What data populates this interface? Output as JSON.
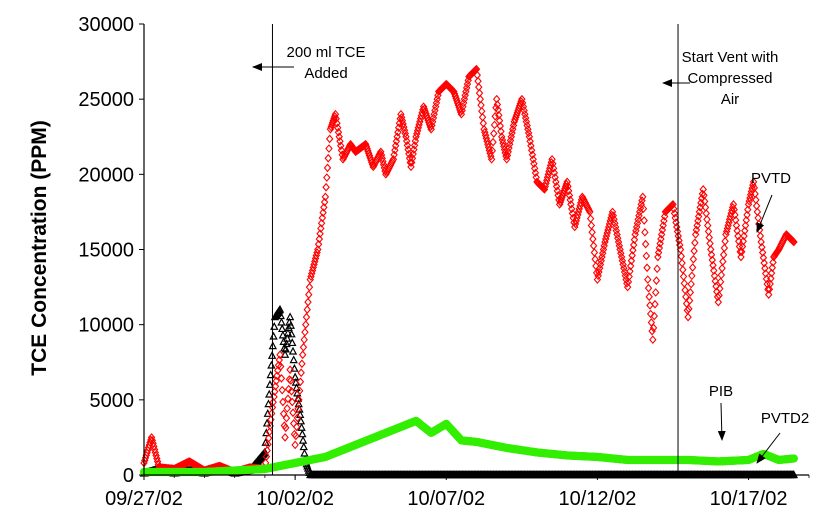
{
  "chart_data": {
    "type": "scatter",
    "title": "",
    "xlabel": "",
    "ylabel": "TCE Concentration (PPM)",
    "x_tick_labels": [
      "09/27/02",
      "10/02/02",
      "10/07/02",
      "10/12/02",
      "10/17/02"
    ],
    "x_tick_dates": [
      "2002-09-27",
      "2002-10-02",
      "2002-10-07",
      "2002-10-12",
      "2002-10-17"
    ],
    "xlim": [
      "2002-09-27",
      "2002-10-19"
    ],
    "y_tick_labels": [
      "0",
      "5000",
      "10000",
      "15000",
      "20000",
      "25000",
      "30000"
    ],
    "ylim": [
      0,
      30000
    ],
    "grid": false,
    "legend": "none",
    "series": [
      {
        "name": "PVTD",
        "color": "#ff0000",
        "marker": "diamond-open",
        "points": [
          [
            "2002-09-27",
            800
          ],
          [
            "2002-09-27 06:00",
            2500
          ],
          [
            "2002-09-27 12:00",
            500
          ],
          [
            "2002-09-28",
            400
          ],
          [
            "2002-09-28 12:00",
            900
          ],
          [
            "2002-09-29",
            300
          ],
          [
            "2002-09-29 12:00",
            600
          ],
          [
            "2002-09-30",
            200
          ],
          [
            "2002-09-30 12:00",
            500
          ],
          [
            "2002-10-01",
            400
          ],
          [
            "2002-10-01 06:00",
            4500
          ],
          [
            "2002-10-01 12:00",
            8000
          ],
          [
            "2002-10-01 16:00",
            2500
          ],
          [
            "2002-10-01 20:00",
            7000
          ],
          [
            "2002-10-02",
            2000
          ],
          [
            "2002-10-02 06:00",
            8000
          ],
          [
            "2002-10-02 12:00",
            13000
          ],
          [
            "2002-10-02 18:00",
            15000
          ],
          [
            "2002-10-03",
            18500
          ],
          [
            "2002-10-03 04:00",
            23000
          ],
          [
            "2002-10-03 08:00",
            24000
          ],
          [
            "2002-10-03 14:00",
            21000
          ],
          [
            "2002-10-03 20:00",
            22000
          ],
          [
            "2002-10-04",
            21500
          ],
          [
            "2002-10-04 08:00",
            22000
          ],
          [
            "2002-10-04 14:00",
            20500
          ],
          [
            "2002-10-04 20:00",
            21500
          ],
          [
            "2002-10-05",
            20000
          ],
          [
            "2002-10-05 06:00",
            21000
          ],
          [
            "2002-10-05 12:00",
            24000
          ],
          [
            "2002-10-05 16:00",
            22500
          ],
          [
            "2002-10-05 20:00",
            20500
          ],
          [
            "2002-10-06",
            22500
          ],
          [
            "2002-10-06 06:00",
            24500
          ],
          [
            "2002-10-06 12:00",
            23000
          ],
          [
            "2002-10-06 18:00",
            25500
          ],
          [
            "2002-10-07",
            26000
          ],
          [
            "2002-10-07 06:00",
            25500
          ],
          [
            "2002-10-07 12:00",
            24000
          ],
          [
            "2002-10-07 18:00",
            26500
          ],
          [
            "2002-10-08",
            27000
          ],
          [
            "2002-10-08 06:00",
            23000
          ],
          [
            "2002-10-08 12:00",
            21000
          ],
          [
            "2002-10-08 16:00",
            25000
          ],
          [
            "2002-10-08 20:00",
            22500
          ],
          [
            "2002-10-09",
            21000
          ],
          [
            "2002-10-09 06:00",
            23500
          ],
          [
            "2002-10-09 12:00",
            25000
          ],
          [
            "2002-10-09 18:00",
            22500
          ],
          [
            "2002-10-10",
            19500
          ],
          [
            "2002-10-10 06:00",
            19000
          ],
          [
            "2002-10-10 12:00",
            21000
          ],
          [
            "2002-10-10 18:00",
            18000
          ],
          [
            "2002-10-11",
            19500
          ],
          [
            "2002-10-11 06:00",
            16500
          ],
          [
            "2002-10-11 12:00",
            18500
          ],
          [
            "2002-10-11 18:00",
            17500
          ],
          [
            "2002-10-12",
            13000
          ],
          [
            "2002-10-12 06:00",
            15500
          ],
          [
            "2002-10-12 12:00",
            17500
          ],
          [
            "2002-10-12 18:00",
            15000
          ],
          [
            "2002-10-13",
            12500
          ],
          [
            "2002-10-13 06:00",
            16000
          ],
          [
            "2002-10-13 12:00",
            18500
          ],
          [
            "2002-10-13 16:00",
            13000
          ],
          [
            "2002-10-13 20:00",
            9000
          ],
          [
            "2002-10-14",
            14500
          ],
          [
            "2002-10-14 06:00",
            17500
          ],
          [
            "2002-10-14 12:00",
            18000
          ],
          [
            "2002-10-14 18:00",
            15000
          ],
          [
            "2002-10-15",
            10500
          ],
          [
            "2002-10-15 06:00",
            16000
          ],
          [
            "2002-10-15 12:00",
            19000
          ],
          [
            "2002-10-15 18:00",
            15000
          ],
          [
            "2002-10-16",
            11500
          ],
          [
            "2002-10-16 06:00",
            16000
          ],
          [
            "2002-10-16 12:00",
            18000
          ],
          [
            "2002-10-16 18:00",
            14500
          ],
          [
            "2002-10-17",
            18000
          ],
          [
            "2002-10-17 04:00",
            19500
          ],
          [
            "2002-10-17 10:00",
            15500
          ],
          [
            "2002-10-17 16:00",
            12000
          ],
          [
            "2002-10-17 20:00",
            14500
          ],
          [
            "2002-10-18",
            15000
          ],
          [
            "2002-10-18 06:00",
            16000
          ],
          [
            "2002-10-18 12:00",
            15500
          ]
        ]
      },
      {
        "name": "",
        "color": "#000000",
        "marker": "triangle-open",
        "points": [
          [
            "2002-09-27",
            100
          ],
          [
            "2002-09-27 12:00",
            400
          ],
          [
            "2002-09-28",
            100
          ],
          [
            "2002-09-28 12:00",
            300
          ],
          [
            "2002-09-29",
            100
          ],
          [
            "2002-09-29 12:00",
            500
          ],
          [
            "2002-09-30",
            100
          ],
          [
            "2002-09-30 12:00",
            300
          ],
          [
            "2002-10-01",
            1500
          ],
          [
            "2002-10-01 04:00",
            6000
          ],
          [
            "2002-10-01 08:00",
            10500
          ],
          [
            "2002-10-01 12:00",
            11000
          ],
          [
            "2002-10-01 16:00",
            8000
          ],
          [
            "2002-10-01 20:00",
            10500
          ],
          [
            "2002-10-02",
            6500
          ],
          [
            "2002-10-02 04:00",
            4000
          ],
          [
            "2002-10-02 08:00",
            1000
          ],
          [
            "2002-10-02 12:00",
            0
          ],
          [
            "2002-10-06",
            0
          ],
          [
            "2002-10-10",
            0
          ],
          [
            "2002-10-14",
            0
          ],
          [
            "2002-10-18 12:00",
            0
          ]
        ]
      },
      {
        "name": "PVTD2",
        "color": "#33ee00",
        "marker": "circle-open",
        "points": [
          [
            "2002-09-27",
            200
          ],
          [
            "2002-09-29",
            200
          ],
          [
            "2002-10-01",
            400
          ],
          [
            "2002-10-02",
            800
          ],
          [
            "2002-10-03",
            1200
          ],
          [
            "2002-10-04",
            2000
          ],
          [
            "2002-10-05",
            2800
          ],
          [
            "2002-10-05 12:00",
            3200
          ],
          [
            "2002-10-06",
            3600
          ],
          [
            "2002-10-06 12:00",
            2800
          ],
          [
            "2002-10-07",
            3400
          ],
          [
            "2002-10-07 12:00",
            2300
          ],
          [
            "2002-10-08",
            2200
          ],
          [
            "2002-10-09",
            1800
          ],
          [
            "2002-10-10",
            1500
          ],
          [
            "2002-10-11",
            1300
          ],
          [
            "2002-10-12",
            1200
          ],
          [
            "2002-10-13",
            1000
          ],
          [
            "2002-10-14",
            1000
          ],
          [
            "2002-10-15",
            1000
          ],
          [
            "2002-10-16",
            900
          ],
          [
            "2002-10-17",
            1000
          ],
          [
            "2002-10-17 12:00",
            1400
          ],
          [
            "2002-10-18",
            1000
          ],
          [
            "2002-10-18 12:00",
            1100
          ]
        ]
      }
    ],
    "event_lines": [
      {
        "date": "2002-10-01 06:00",
        "label": "200 ml TCE Added"
      },
      {
        "date": "2002-10-14 16:00",
        "label": "Start Vent with Compressed Air"
      }
    ],
    "annotations": [
      {
        "text": "PVTD",
        "target_series": "PVTD"
      },
      {
        "text": "PIB",
        "target_series": "PVTD2"
      },
      {
        "text": "PVTD2",
        "target_series": ""
      }
    ]
  },
  "labels": {
    "event1_line1": "200 ml TCE",
    "event1_line2": "Added",
    "event2_line1": "Start Vent with",
    "event2_line2": "Compressed",
    "event2_line3": "Air",
    "pvtd": "PVTD",
    "pib": "PIB",
    "pvtd2": "PVTD2"
  }
}
